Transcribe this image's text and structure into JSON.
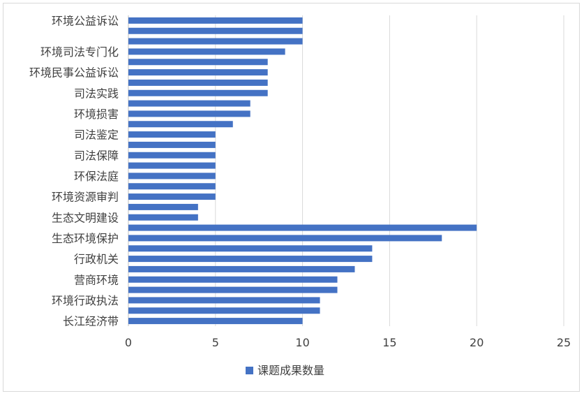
{
  "chart_data": {
    "type": "bar",
    "orientation": "horizontal",
    "title": "",
    "xlabel": "",
    "ylabel": "",
    "xlim": [
      0,
      25
    ],
    "x_ticks": [
      "0",
      "5",
      "10",
      "15",
      "20",
      "25"
    ],
    "grid": true,
    "legend_position": "bottom",
    "bar_color": "#4472c4",
    "categories": [
      "环境公益诉讼",
      "",
      "",
      "环境司法专门化",
      "",
      "环境民事公益诉讼",
      "",
      "司法实践",
      "",
      "环境损害",
      "",
      "司法鉴定",
      "",
      "司法保障",
      "",
      "环保法庭",
      "",
      "环境资源审判",
      "",
      "生态文明建设",
      "",
      "生态环境保护",
      "",
      "行政机关",
      "",
      "营商环境",
      "",
      "环境行政执法",
      "",
      "长江经济带"
    ],
    "series": [
      {
        "name": "课题成果数量",
        "values": [
          10,
          10,
          10,
          9,
          8,
          8,
          8,
          8,
          7,
          7,
          6,
          5,
          5,
          5,
          5,
          5,
          5,
          5,
          4,
          4,
          20,
          18,
          14,
          14,
          13,
          12,
          12,
          11,
          11,
          10
        ]
      }
    ]
  }
}
